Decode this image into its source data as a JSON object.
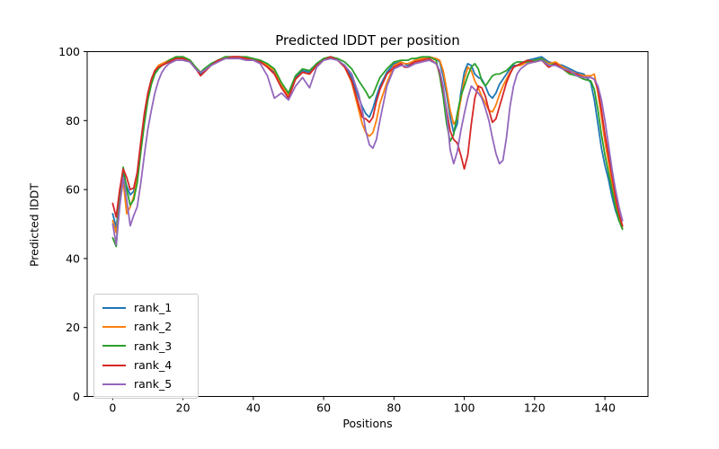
{
  "chart_data": {
    "type": "line",
    "title": "Predicted lDDT per position",
    "xlabel": "Positions",
    "ylabel": "Predicted lDDT",
    "xlim": [
      -7.25,
      152.25
    ],
    "ylim": [
      0,
      100
    ],
    "xticks": [
      0,
      20,
      40,
      60,
      80,
      100,
      120,
      140
    ],
    "yticks": [
      0,
      20,
      40,
      60,
      80,
      100
    ],
    "grid": false,
    "legend_position": "lower left",
    "line_width": 1.8,
    "x": [
      0,
      1,
      2,
      3,
      4,
      5,
      6,
      7,
      8,
      9,
      10,
      11,
      12,
      13,
      14,
      15,
      16,
      18,
      20,
      22,
      24,
      25,
      26,
      28,
      30,
      32,
      34,
      36,
      38,
      40,
      42,
      44,
      46,
      48,
      50,
      52,
      54,
      56,
      58,
      60,
      62,
      64,
      66,
      68,
      70,
      71,
      72,
      73,
      74,
      75,
      76,
      78,
      80,
      82,
      83,
      84,
      85,
      86,
      88,
      90,
      92,
      93,
      94,
      95,
      96,
      97,
      98,
      99,
      100,
      101,
      102,
      103,
      104,
      105,
      106,
      107,
      108,
      109,
      110,
      111,
      112,
      113,
      114,
      115,
      116,
      118,
      120,
      122,
      124,
      126,
      128,
      130,
      132,
      134,
      136,
      137,
      138,
      139,
      140,
      141,
      142,
      143,
      144,
      145
    ],
    "series": [
      {
        "name": "rank_1",
        "color": "#1f77b4",
        "values": [
          53,
          49,
          57,
          64.5,
          61,
          58.5,
          59.5,
          64,
          73,
          81,
          87.5,
          91,
          94,
          95.5,
          96,
          96.5,
          97,
          98,
          98.5,
          97.5,
          94.5,
          93.5,
          94.5,
          96.5,
          97.5,
          98,
          98.5,
          98.5,
          98,
          97.5,
          97,
          96,
          94,
          90,
          87.5,
          92.5,
          94.5,
          94,
          96.5,
          98,
          98.5,
          97.5,
          96,
          92.5,
          86.5,
          84,
          82,
          81,
          83.5,
          87,
          90,
          94,
          96.5,
          97,
          96.5,
          96,
          96.5,
          97.5,
          98,
          98.5,
          98,
          97,
          93,
          87.5,
          81,
          76.5,
          79,
          88,
          94,
          96.5,
          96,
          93.5,
          92.5,
          92,
          90,
          87.5,
          86.5,
          88,
          90.5,
          92,
          93.5,
          95,
          96,
          96,
          96.5,
          97.5,
          98,
          98.5,
          97,
          96.5,
          96,
          95,
          94,
          93.5,
          91,
          86,
          79,
          72,
          67,
          63,
          58,
          54,
          51,
          49.5
        ]
      },
      {
        "name": "rank_2",
        "color": "#ff7f0e",
        "values": [
          51,
          47.5,
          56,
          62.5,
          53,
          55,
          58,
          63,
          72,
          80,
          87,
          91.5,
          94.5,
          96,
          96.5,
          97,
          97.5,
          98.5,
          98.5,
          97.5,
          95,
          94,
          94.5,
          96.5,
          97.5,
          98.5,
          98.5,
          98.5,
          98,
          98,
          97.5,
          96,
          94.5,
          90.5,
          87,
          92,
          94,
          93.5,
          96,
          98,
          98.5,
          97.5,
          95.5,
          91,
          83,
          79,
          76.5,
          75.5,
          76.5,
          80,
          85,
          91,
          96,
          97,
          96.5,
          96.5,
          97,
          97.5,
          98,
          98.5,
          98,
          97.5,
          94.5,
          89,
          83,
          79,
          80.5,
          86,
          92,
          95.5,
          94.5,
          91.5,
          89.5,
          87,
          85,
          83,
          82.5,
          84.5,
          87.5,
          90,
          92,
          94,
          95.5,
          96,
          96,
          97,
          97.5,
          98,
          96.5,
          97,
          95.5,
          94.5,
          93.5,
          93,
          93,
          93.5,
          88,
          81,
          74,
          68,
          62,
          57,
          52,
          49
        ]
      },
      {
        "name": "rank_3",
        "color": "#2ca02c",
        "values": [
          46,
          43.5,
          58,
          66.5,
          60,
          55.5,
          57,
          62,
          71,
          79,
          86,
          90.5,
          93.5,
          95,
          96,
          96.5,
          97.5,
          98.5,
          98.5,
          97.5,
          95,
          94,
          95,
          96.5,
          97.5,
          98.5,
          98.5,
          98.5,
          98.5,
          98,
          97.5,
          96.5,
          95,
          91,
          88,
          93,
          95,
          94.5,
          96.5,
          98,
          98.5,
          98,
          97,
          95,
          91.5,
          90,
          88.5,
          86.5,
          87.5,
          90,
          92.5,
          95,
          97,
          97.5,
          97.5,
          97.5,
          98,
          98,
          98.5,
          98.5,
          97.5,
          93,
          87,
          79,
          74,
          76,
          82,
          87,
          90,
          93,
          95.5,
          96.5,
          95,
          91.5,
          90,
          91.5,
          93,
          93.5,
          93.5,
          94,
          94.5,
          95.5,
          96.5,
          97,
          97,
          97,
          97.5,
          98,
          96,
          96.5,
          95,
          93.5,
          93,
          92,
          91.5,
          89,
          83,
          76,
          70,
          65,
          60,
          55,
          51,
          48.5
        ]
      },
      {
        "name": "rank_4",
        "color": "#d62728",
        "values": [
          56,
          52,
          60,
          66,
          63.5,
          60,
          60.5,
          65,
          74,
          82,
          88,
          92,
          94.5,
          95.5,
          96,
          96.5,
          97,
          98,
          98,
          97,
          94.5,
          93,
          94,
          96,
          97.5,
          98,
          98.5,
          98.5,
          98,
          97.5,
          97,
          95.5,
          93.5,
          89.5,
          86.5,
          92,
          94,
          93.5,
          96,
          97.5,
          98.5,
          97.5,
          95.5,
          91.5,
          84.5,
          81,
          80.5,
          79.5,
          81,
          85.5,
          89,
          93.5,
          95.5,
          96.5,
          95.5,
          95.5,
          96.5,
          97,
          97.5,
          98,
          96.5,
          94,
          89,
          83,
          77,
          74.5,
          73.5,
          70,
          66,
          70,
          79,
          86.5,
          90,
          89.5,
          87,
          83,
          79.5,
          80.5,
          84,
          87.5,
          91,
          93.5,
          95.5,
          96,
          96.5,
          97.5,
          97,
          97.5,
          95.5,
          96.5,
          95,
          94,
          93.5,
          92.5,
          92.5,
          92,
          89,
          83,
          76,
          70,
          64,
          58,
          53,
          49.5
        ]
      },
      {
        "name": "rank_5",
        "color": "#9467bd",
        "values": [
          50,
          44,
          55,
          63.5,
          57,
          49.5,
          52.5,
          55,
          62,
          70,
          77.5,
          83,
          88,
          91.5,
          94,
          95.5,
          96.5,
          97.5,
          97.5,
          97,
          94.5,
          94,
          94.5,
          96,
          97,
          98,
          98,
          98,
          97.5,
          97.5,
          96.5,
          93,
          86.5,
          88,
          86,
          90,
          92.5,
          89.5,
          95.5,
          97.5,
          98,
          97.5,
          96,
          93.5,
          87.5,
          83,
          77,
          73,
          72,
          74.5,
          80,
          90,
          95,
          96,
          95.8,
          95.5,
          96,
          96.5,
          97,
          97.5,
          96.5,
          94.5,
          90,
          82,
          71.5,
          67.5,
          71,
          77,
          82,
          86.5,
          90,
          89,
          88,
          86.5,
          83.5,
          80,
          75,
          70.5,
          67.5,
          68.5,
          75,
          84,
          90,
          93.5,
          95,
          96.5,
          97,
          97.5,
          96,
          96,
          95,
          94.5,
          93,
          92.5,
          92.5,
          92,
          90,
          86,
          80,
          73,
          66,
          60,
          55,
          51
        ]
      }
    ]
  }
}
